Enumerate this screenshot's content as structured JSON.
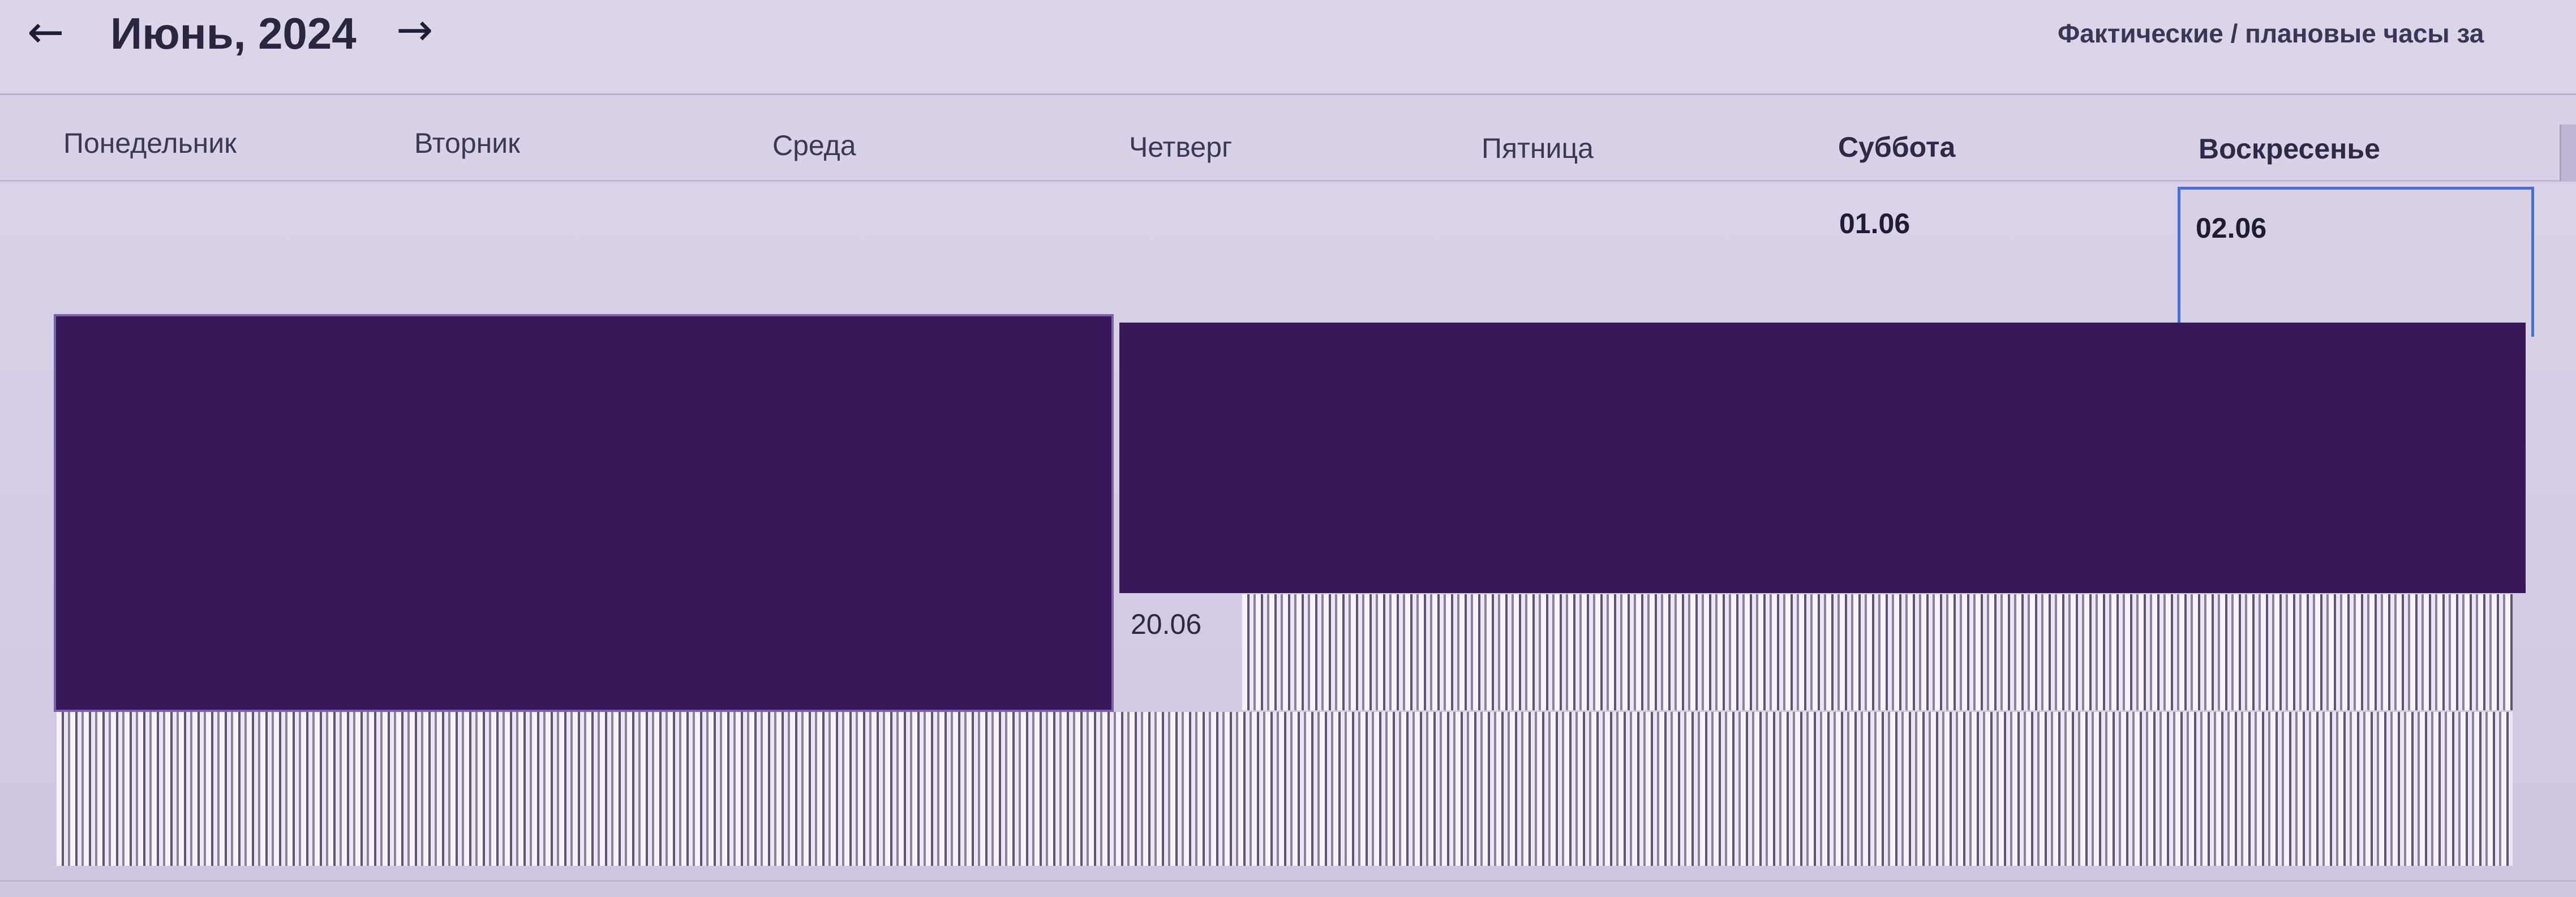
{
  "toolbar": {
    "prev_icon": "←",
    "next_icon": "→",
    "month_title": "Июнь, 2024",
    "hours_label": "Фактические / плановые часы за"
  },
  "calendar": {
    "weekdays": [
      "Понедельник",
      "Вторник",
      "Среда",
      "Четверг",
      "Пятница",
      "Суббота",
      "Воскресенье"
    ],
    "dates": {
      "sat": "01.06",
      "sun": "02.06",
      "thu": "20.06"
    }
  },
  "colors": {
    "redaction": "#38175a",
    "selection_border": "#4a6fd2"
  }
}
